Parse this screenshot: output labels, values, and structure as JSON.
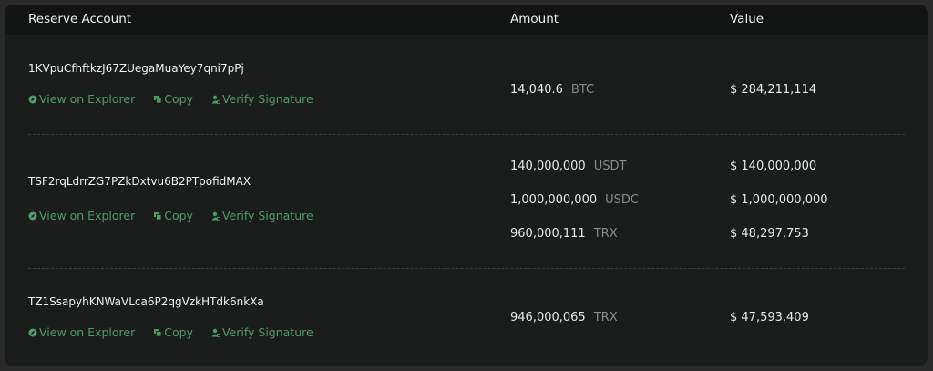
{
  "header": {
    "account": "Reserve Account",
    "amount": "Amount",
    "value": "Value"
  },
  "links": {
    "explorer": "View on Explorer",
    "copy": "Copy",
    "verify": "Verify Signature"
  },
  "colors": {
    "link": "#4e9a6a",
    "background": "#1b1c1c",
    "header": "#121313"
  },
  "rows": [
    {
      "address": "1KVpuCfhftkzJ67ZUegaMuaYey7qni7pPj",
      "holdings": [
        {
          "amount": "14,040.6",
          "symbol": "BTC",
          "value": "$ 284,211,114"
        }
      ]
    },
    {
      "address": "TSF2rqLdrrZG7PZkDxtvu6B2PTpofidMAX",
      "holdings": [
        {
          "amount": "140,000,000",
          "symbol": "USDT",
          "value": "$ 140,000,000"
        },
        {
          "amount": "1,000,000,000",
          "symbol": "USDC",
          "value": "$ 1,000,000,000"
        },
        {
          "amount": "960,000,111",
          "symbol": "TRX",
          "value": "$ 48,297,753"
        }
      ]
    },
    {
      "address": "TZ1SsapyhKNWaVLca6P2qgVzkHTdk6nkXa",
      "holdings": [
        {
          "amount": "946,000,065",
          "symbol": "TRX",
          "value": "$ 47,593,409"
        }
      ]
    }
  ]
}
